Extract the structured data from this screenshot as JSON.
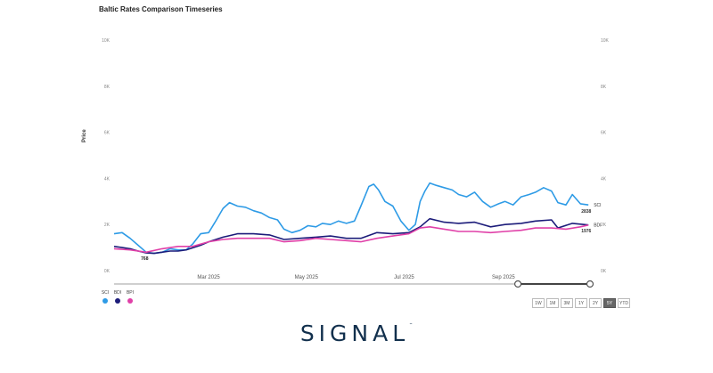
{
  "page": {
    "title": "Baltic Rates Comparison Timeseries",
    "logo_text": "SIGNAL",
    "logo_tm": "™"
  },
  "colors": {
    "SCI": "#2e9be6",
    "BDI": "#1c1c7a",
    "BPI": "#e040a8"
  },
  "legend": [
    {
      "name": "SCI",
      "color": "#2e9be6"
    },
    {
      "name": "BDI",
      "color": "#1c1c7a"
    },
    {
      "name": "BPI",
      "color": "#e040a8"
    }
  ],
  "range_buttons": [
    {
      "label": "1W",
      "active": false
    },
    {
      "label": "1M",
      "active": false
    },
    {
      "label": "3M",
      "active": false
    },
    {
      "label": "1Y",
      "active": false
    },
    {
      "label": "2Y",
      "active": false
    },
    {
      "label": "5Y",
      "active": true
    },
    {
      "label": "YTD",
      "active": false
    }
  ],
  "chart_data": {
    "type": "line",
    "title": "Baltic Rates Comparison Timeseries",
    "ylabel": "Price",
    "xlabel": "",
    "ylim": [
      0,
      10000
    ],
    "yticks": [
      0,
      2000,
      4000,
      6000,
      8000,
      10000
    ],
    "ytick_labels": [
      "0K",
      "2K",
      "4K",
      "6K",
      "8K",
      "10K"
    ],
    "xlim": [
      "2025-01-01",
      "2025-10-25"
    ],
    "xticks": [
      {
        "label": "Mar 2025",
        "date": "2025-03-01"
      },
      {
        "label": "May 2025",
        "date": "2025-05-01"
      },
      {
        "label": "Jul 2025",
        "date": "2025-07-01"
      },
      {
        "label": "Sep 2025",
        "date": "2025-09-01"
      }
    ],
    "grid": false,
    "annotations": [
      {
        "text": "768",
        "date": "2025-01-20",
        "value": 768,
        "series": "BDI"
      }
    ],
    "end_labels": [
      {
        "series": "SCI",
        "text": "SCI"
      },
      {
        "series": "SCI",
        "text": "2838"
      },
      {
        "series": "BDI",
        "text": "BDI"
      },
      {
        "series": "BPI",
        "text": "1976"
      }
    ],
    "series": [
      {
        "name": "SCI",
        "color": "#2e9be6",
        "points": [
          [
            "2025-01-01",
            1600
          ],
          [
            "2025-01-06",
            1650
          ],
          [
            "2025-01-11",
            1400
          ],
          [
            "2025-01-16",
            1100
          ],
          [
            "2025-01-21",
            800
          ],
          [
            "2025-01-26",
            750
          ],
          [
            "2025-01-31",
            800
          ],
          [
            "2025-02-05",
            950
          ],
          [
            "2025-02-10",
            900
          ],
          [
            "2025-02-15",
            900
          ],
          [
            "2025-02-19",
            1150
          ],
          [
            "2025-02-24",
            1600
          ],
          [
            "2025-03-01",
            1650
          ],
          [
            "2025-03-05",
            2100
          ],
          [
            "2025-03-10",
            2700
          ],
          [
            "2025-03-14",
            2950
          ],
          [
            "2025-03-19",
            2800
          ],
          [
            "2025-03-24",
            2750
          ],
          [
            "2025-03-29",
            2600
          ],
          [
            "2025-04-03",
            2500
          ],
          [
            "2025-04-08",
            2300
          ],
          [
            "2025-04-13",
            2200
          ],
          [
            "2025-04-17",
            1800
          ],
          [
            "2025-04-22",
            1650
          ],
          [
            "2025-04-27",
            1750
          ],
          [
            "2025-05-02",
            1950
          ],
          [
            "2025-05-07",
            1900
          ],
          [
            "2025-05-11",
            2050
          ],
          [
            "2025-05-16",
            2000
          ],
          [
            "2025-05-21",
            2150
          ],
          [
            "2025-05-26",
            2050
          ],
          [
            "2025-05-31",
            2150
          ],
          [
            "2025-06-04",
            2800
          ],
          [
            "2025-06-09",
            3650
          ],
          [
            "2025-06-12",
            3750
          ],
          [
            "2025-06-15",
            3500
          ],
          [
            "2025-06-19",
            3000
          ],
          [
            "2025-06-24",
            2800
          ],
          [
            "2025-06-29",
            2150
          ],
          [
            "2025-07-04",
            1750
          ],
          [
            "2025-07-08",
            2000
          ],
          [
            "2025-07-11",
            3000
          ],
          [
            "2025-07-14",
            3450
          ],
          [
            "2025-07-17",
            3800
          ],
          [
            "2025-07-21",
            3700
          ],
          [
            "2025-07-26",
            3600
          ],
          [
            "2025-07-31",
            3500
          ],
          [
            "2025-08-04",
            3300
          ],
          [
            "2025-08-09",
            3200
          ],
          [
            "2025-08-14",
            3400
          ],
          [
            "2025-08-19",
            3000
          ],
          [
            "2025-08-24",
            2750
          ],
          [
            "2025-08-29",
            2900
          ],
          [
            "2025-09-02",
            3000
          ],
          [
            "2025-09-07",
            2850
          ],
          [
            "2025-09-12",
            3200
          ],
          [
            "2025-09-17",
            3300
          ],
          [
            "2025-09-21",
            3400
          ],
          [
            "2025-09-26",
            3600
          ],
          [
            "2025-10-01",
            3450
          ],
          [
            "2025-10-05",
            2950
          ],
          [
            "2025-10-10",
            2850
          ],
          [
            "2025-10-14",
            3300
          ],
          [
            "2025-10-19",
            2900
          ],
          [
            "2025-10-24",
            2850
          ]
        ]
      },
      {
        "name": "BDI",
        "color": "#1c1c7a",
        "points": [
          [
            "2025-01-01",
            1050
          ],
          [
            "2025-01-06",
            1000
          ],
          [
            "2025-01-11",
            950
          ],
          [
            "2025-01-16",
            850
          ],
          [
            "2025-01-21",
            768
          ],
          [
            "2025-01-26",
            750
          ],
          [
            "2025-01-31",
            800
          ],
          [
            "2025-02-05",
            850
          ],
          [
            "2025-02-10",
            850
          ],
          [
            "2025-02-15",
            900
          ],
          [
            "2025-02-24",
            1100
          ],
          [
            "2025-03-01",
            1250
          ],
          [
            "2025-03-10",
            1450
          ],
          [
            "2025-03-19",
            1600
          ],
          [
            "2025-03-29",
            1600
          ],
          [
            "2025-04-08",
            1550
          ],
          [
            "2025-04-17",
            1350
          ],
          [
            "2025-04-27",
            1400
          ],
          [
            "2025-05-07",
            1450
          ],
          [
            "2025-05-16",
            1500
          ],
          [
            "2025-05-26",
            1400
          ],
          [
            "2025-06-04",
            1400
          ],
          [
            "2025-06-14",
            1650
          ],
          [
            "2025-06-24",
            1600
          ],
          [
            "2025-07-04",
            1650
          ],
          [
            "2025-07-11",
            1900
          ],
          [
            "2025-07-17",
            2250
          ],
          [
            "2025-07-26",
            2100
          ],
          [
            "2025-08-04",
            2050
          ],
          [
            "2025-08-14",
            2100
          ],
          [
            "2025-08-24",
            1900
          ],
          [
            "2025-09-02",
            2000
          ],
          [
            "2025-09-12",
            2050
          ],
          [
            "2025-09-21",
            2150
          ],
          [
            "2025-10-01",
            2200
          ],
          [
            "2025-10-05",
            1850
          ],
          [
            "2025-10-14",
            2050
          ],
          [
            "2025-10-24",
            1980
          ]
        ]
      },
      {
        "name": "BPI",
        "color": "#e040a8",
        "points": [
          [
            "2025-01-01",
            950
          ],
          [
            "2025-01-11",
            900
          ],
          [
            "2025-01-21",
            800
          ],
          [
            "2025-01-31",
            950
          ],
          [
            "2025-02-10",
            1050
          ],
          [
            "2025-02-19",
            1050
          ],
          [
            "2025-03-01",
            1250
          ],
          [
            "2025-03-10",
            1350
          ],
          [
            "2025-03-19",
            1400
          ],
          [
            "2025-03-29",
            1400
          ],
          [
            "2025-04-08",
            1400
          ],
          [
            "2025-04-17",
            1250
          ],
          [
            "2025-04-27",
            1300
          ],
          [
            "2025-05-07",
            1400
          ],
          [
            "2025-05-16",
            1350
          ],
          [
            "2025-05-26",
            1300
          ],
          [
            "2025-06-04",
            1250
          ],
          [
            "2025-06-14",
            1400
          ],
          [
            "2025-06-24",
            1500
          ],
          [
            "2025-07-04",
            1600
          ],
          [
            "2025-07-11",
            1850
          ],
          [
            "2025-07-17",
            1900
          ],
          [
            "2025-07-26",
            1800
          ],
          [
            "2025-08-04",
            1700
          ],
          [
            "2025-08-14",
            1700
          ],
          [
            "2025-08-24",
            1650
          ],
          [
            "2025-09-02",
            1700
          ],
          [
            "2025-09-12",
            1750
          ],
          [
            "2025-09-21",
            1850
          ],
          [
            "2025-10-01",
            1850
          ],
          [
            "2025-10-10",
            1800
          ],
          [
            "2025-10-19",
            1900
          ],
          [
            "2025-10-24",
            1976
          ]
        ]
      }
    ],
    "navigator": {
      "range_start": "2025-09-10",
      "range_end": "2025-10-25"
    }
  }
}
